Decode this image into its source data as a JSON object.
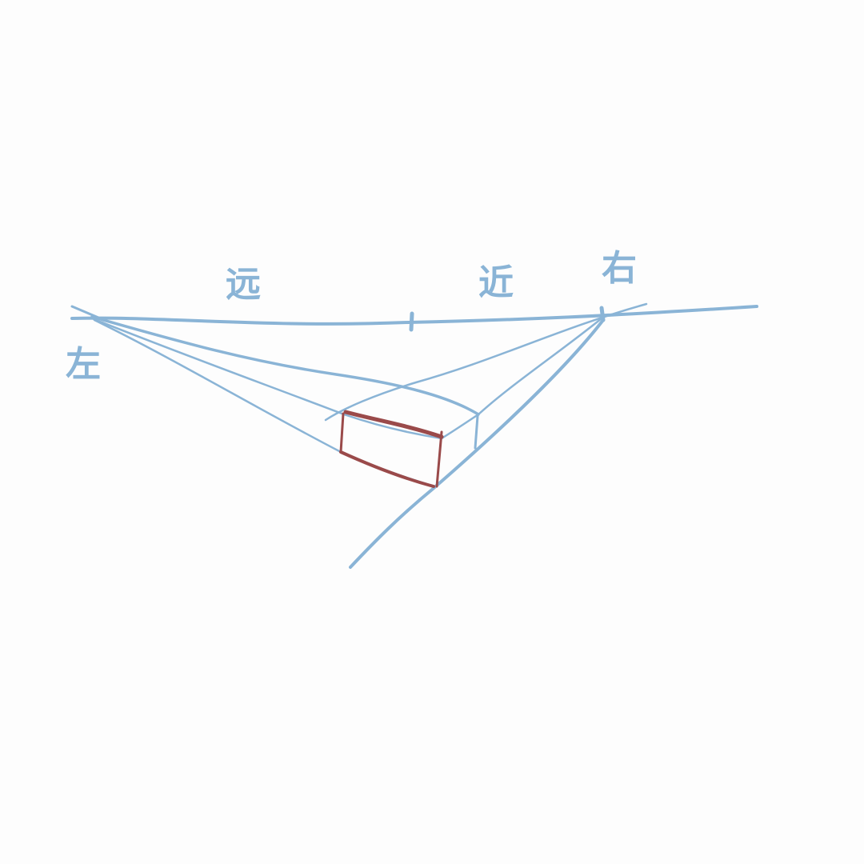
{
  "diagram": {
    "labels": {
      "left": "左",
      "far": "远",
      "near": "近",
      "right": "右"
    },
    "colors": {
      "guide_line": "#8ab4d6",
      "box_outline": "#9a4a4a",
      "background": "#fdfdfd"
    }
  }
}
